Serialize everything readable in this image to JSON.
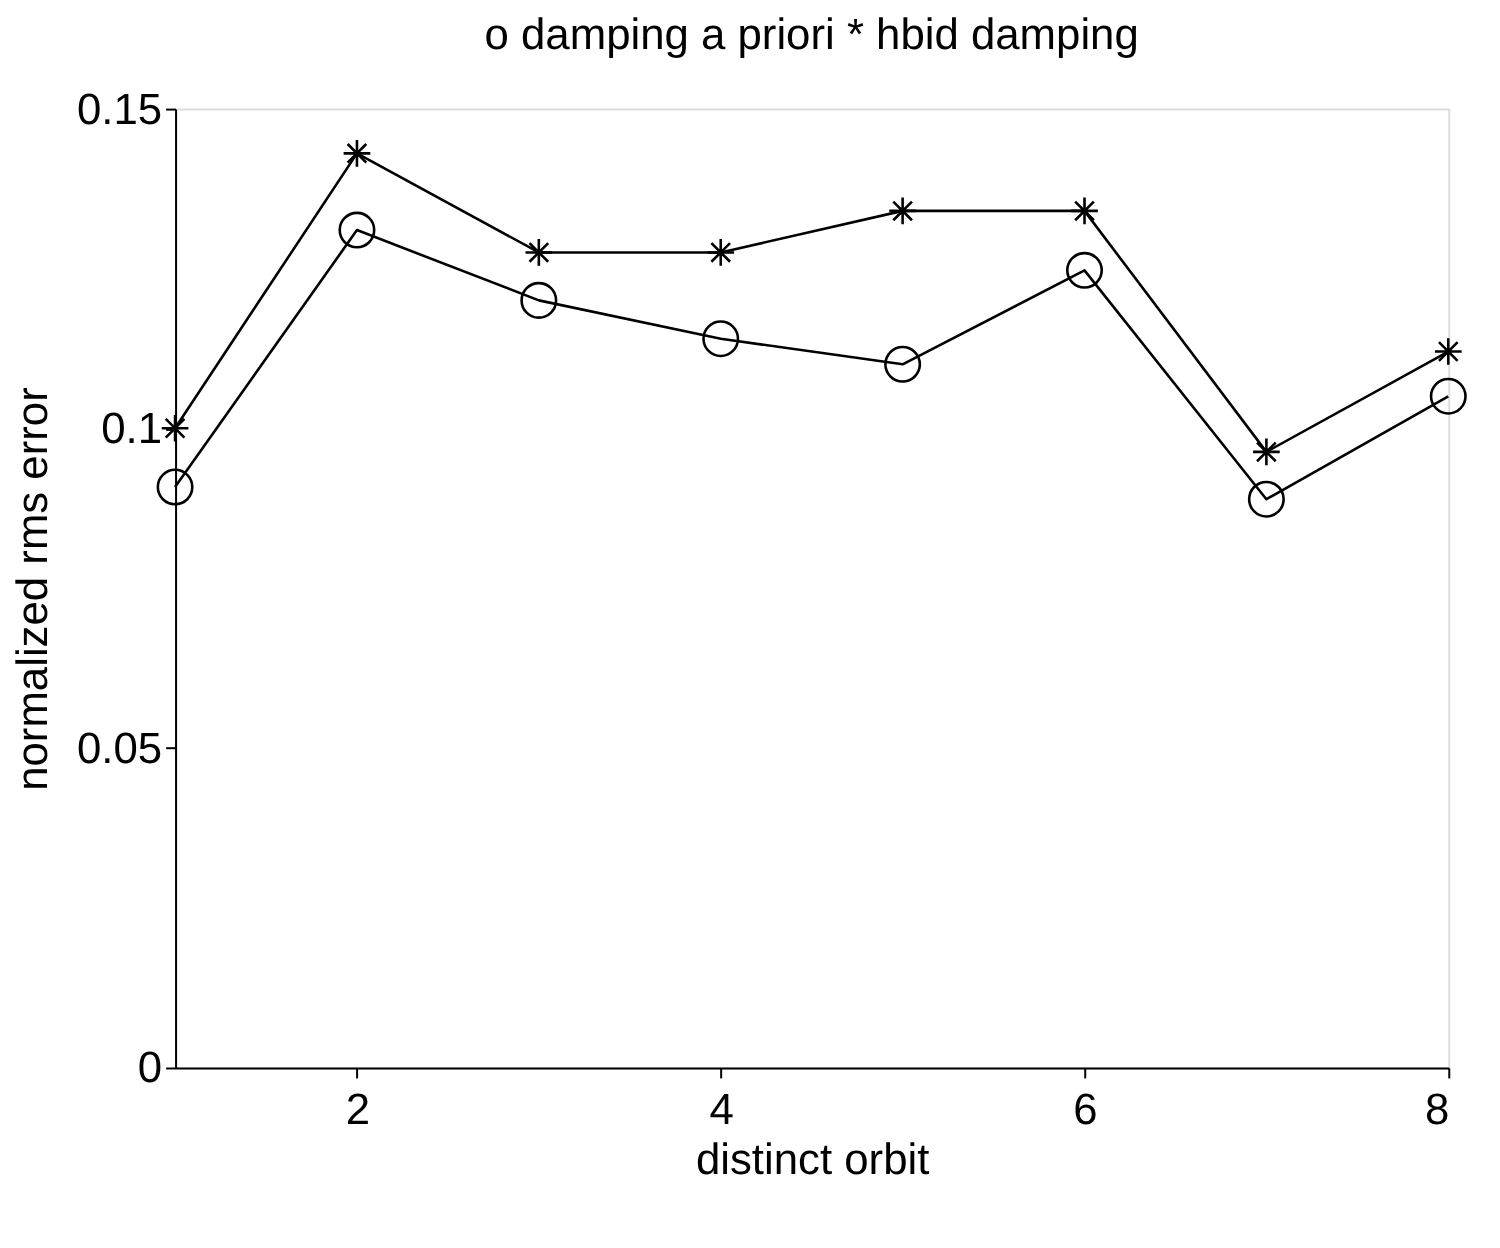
{
  "chart_data": {
    "type": "line",
    "title": "o  damping a priori    *  hbid damping",
    "xlabel": "distinct orbit",
    "ylabel": "normalized rms error",
    "x": [
      1,
      2,
      3,
      4,
      5,
      6,
      7,
      8
    ],
    "series": [
      {
        "color": "#000000",
        "marker": "circle",
        "values": [
          0.0908,
          0.131,
          0.12,
          0.114,
          0.11,
          0.1247,
          0.0889,
          0.105
        ]
      },
      {
        "color": "#000000",
        "marker": "cross",
        "values": [
          0.1,
          0.143,
          0.1275,
          0.1275,
          0.134,
          0.134,
          0.0963,
          0.112
        ]
      }
    ],
    "xlim": [
      1,
      8
    ],
    "xticks": [
      2,
      4,
      6,
      8
    ],
    "ylim": [
      0,
      0.15
    ],
    "yticks": [
      0,
      0.05,
      0.1,
      0.15
    ],
    "grid": false,
    "line_style": "solid"
  }
}
